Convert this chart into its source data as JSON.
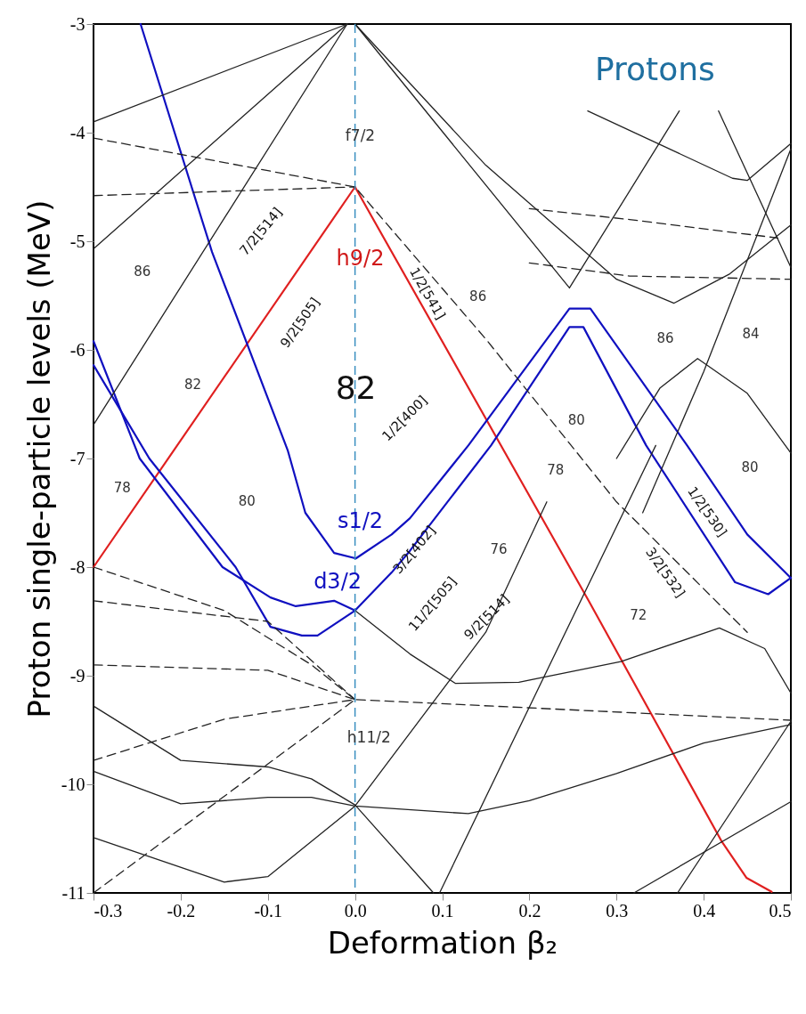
{
  "chart_data": {
    "type": "line",
    "xlabel": "Deformation β₂",
    "ylabel": "Proton single-particle levels (MeV)",
    "xlim": [
      -0.3,
      0.5
    ],
    "ylim": [
      -11,
      -3
    ],
    "xticks": [
      -0.3,
      -0.2,
      -0.1,
      {
        "value": 0,
        "label": "0.0"
      },
      0.1,
      0.2,
      0.3,
      0.4,
      0.5
    ],
    "yticks": [
      -11,
      -10,
      -9,
      -8,
      -7,
      -6,
      -5,
      -4,
      -3
    ],
    "grid": false,
    "marker": "none",
    "series": [
      {
        "color": "#e02020",
        "line_style": "solid",
        "x": [
          -0.3,
          0.0,
          0.268,
          0.421,
          0.449,
          0.478
        ],
        "values": [
          -8.0,
          -4.5,
          -8.31,
          -10.53,
          -10.86,
          -10.99
        ]
      },
      {
        "color": "#1010c0",
        "line_style": "solid",
        "x": [
          -0.246,
          -0.164,
          -0.077,
          -0.057,
          -0.024,
          0.001,
          0.042,
          0.063,
          0.13,
          0.246,
          0.27,
          0.381,
          0.45,
          0.5
        ],
        "values": [
          -3.0,
          -5.1,
          -6.93,
          -7.5,
          -7.87,
          -7.92,
          -7.7,
          -7.55,
          -6.88,
          -5.62,
          -5.62,
          -6.88,
          -7.7,
          -8.1
        ]
      },
      {
        "color": "#1010c0",
        "line_style": "solid",
        "x": [
          -0.3,
          -0.247,
          -0.152,
          -0.097,
          -0.068,
          -0.024,
          0.0,
          0.042,
          0.063,
          0.156,
          0.246,
          0.262,
          0.334,
          0.436,
          0.474,
          0.5
        ],
        "values": [
          -5.92,
          -7.0,
          -8.0,
          -8.28,
          -8.36,
          -8.31,
          -8.4,
          -8.05,
          -7.85,
          -6.88,
          -5.79,
          -5.79,
          -6.88,
          -8.14,
          -8.25,
          -8.1
        ]
      },
      {
        "color": "#1010c0",
        "line_style": "solid",
        "x": [
          -0.3,
          -0.236,
          -0.137,
          -0.097,
          -0.061,
          -0.043,
          0.0
        ],
        "values": [
          -6.14,
          -7.0,
          -8.0,
          -8.55,
          -8.63,
          -8.63,
          -8.4
        ]
      },
      {
        "color": "#222222",
        "line_style": "solid",
        "x": [
          -0.3,
          -0.009
        ],
        "values": [
          -3.9,
          -3.0
        ]
      },
      {
        "color": "#222222",
        "line_style": "solid",
        "x": [
          -0.3,
          -0.009
        ],
        "values": [
          -5.07,
          -3.0
        ]
      },
      {
        "color": "#222222",
        "line_style": "solid",
        "x": [
          -0.3,
          -0.009
        ],
        "values": [
          -6.69,
          -3.0
        ]
      },
      {
        "color": "#222222",
        "line_style": "solid",
        "x": [
          -0.3,
          -0.2,
          -0.1,
          -0.05,
          0.0,
          0.09
        ],
        "values": [
          -9.28,
          -9.78,
          -9.84,
          -9.95,
          -10.19,
          -11.0
        ]
      },
      {
        "color": "#222222",
        "line_style": "solid",
        "x": [
          -0.3,
          -0.2,
          -0.1,
          -0.05,
          0.0,
          0.13,
          0.2,
          0.3,
          0.4,
          0.5
        ],
        "values": [
          -9.88,
          -10.18,
          -10.12,
          -10.12,
          -10.2,
          -10.27,
          -10.15,
          -9.9,
          -9.62,
          -9.45
        ]
      },
      {
        "color": "#222222",
        "line_style": "solid",
        "x": [
          -0.3,
          -0.15,
          -0.1,
          0.0,
          0.15,
          0.22
        ],
        "values": [
          -10.49,
          -10.9,
          -10.85,
          -10.2,
          -8.6,
          -7.4
        ]
      },
      {
        "color": "#222222",
        "line_style": "solid",
        "x": [
          0.0,
          0.063,
          0.115,
          0.188,
          0.305,
          0.418,
          0.47,
          0.5
        ],
        "values": [
          -8.4,
          -8.8,
          -9.07,
          -9.06,
          -8.87,
          -8.56,
          -8.75,
          -9.16
        ]
      },
      {
        "color": "#222222",
        "line_style": "solid",
        "x": [
          0.097,
          0.345
        ],
        "values": [
          -11.0,
          -6.88
        ]
      },
      {
        "color": "#222222",
        "line_style": "solid",
        "x": [
          0.37,
          0.5
        ],
        "values": [
          -11.0,
          -9.42
        ]
      },
      {
        "color": "#222222",
        "line_style": "solid",
        "x": [
          0.32,
          0.5
        ],
        "values": [
          -11.0,
          -10.16
        ]
      },
      {
        "color": "#222222",
        "line_style": "solid",
        "x": [
          0.0,
          0.246,
          0.372
        ],
        "values": [
          -3.0,
          -5.43,
          -3.8
        ]
      },
      {
        "color": "#222222",
        "line_style": "solid",
        "x": [
          0.0,
          0.15,
          0.3,
          0.366,
          0.43,
          0.5
        ],
        "values": [
          -3.0,
          -4.3,
          -5.35,
          -5.57,
          -5.3,
          -4.85
        ]
      },
      {
        "color": "#222222",
        "line_style": "solid",
        "x": [
          0.267,
          0.433,
          0.45,
          0.5
        ],
        "values": [
          -3.8,
          -4.42,
          -4.44,
          -4.1
        ]
      },
      {
        "color": "#222222",
        "line_style": "solid",
        "x": [
          0.417,
          0.5
        ],
        "values": [
          -3.8,
          -5.24
        ]
      },
      {
        "color": "#222222",
        "line_style": "solid",
        "x": [
          0.3,
          0.35,
          0.393,
          0.45,
          0.5
        ],
        "values": [
          -7.0,
          -6.35,
          -6.08,
          -6.4,
          -6.95
        ]
      },
      {
        "color": "#222222",
        "line_style": "solid",
        "x": [
          0.33,
          0.4,
          0.5
        ],
        "values": [
          -7.5,
          -6.2,
          -4.15
        ]
      },
      {
        "color": "#222222",
        "line_style": "dashed",
        "x": [
          -0.3,
          -0.15,
          -0.05,
          0.0
        ],
        "values": [
          -8.0,
          -8.4,
          -8.9,
          -9.22
        ]
      },
      {
        "color": "#222222",
        "line_style": "dashed",
        "x": [
          -0.3,
          -0.1,
          0.0
        ],
        "values": [
          -8.31,
          -8.5,
          -9.22
        ]
      },
      {
        "color": "#222222",
        "line_style": "dashed",
        "x": [
          -0.3,
          -0.1,
          0.0
        ],
        "values": [
          -8.9,
          -8.95,
          -9.22
        ]
      },
      {
        "color": "#222222",
        "line_style": "dashed",
        "x": [
          -0.3,
          -0.15,
          0.0,
          0.5
        ],
        "values": [
          -9.78,
          -9.4,
          -9.22,
          -9.41
        ]
      },
      {
        "color": "#222222",
        "line_style": "dashed",
        "x": [
          -0.3,
          0.0
        ],
        "values": [
          -11.0,
          -9.22
        ]
      },
      {
        "color": "#222222",
        "line_style": "dashed",
        "x": [
          -0.3,
          0.0,
          0.15,
          0.3,
          0.45
        ],
        "values": [
          -4.05,
          -4.5,
          -5.9,
          -7.4,
          -8.6
        ]
      },
      {
        "color": "#222222",
        "line_style": "dashed",
        "x": [
          -0.3,
          0.0
        ],
        "values": [
          -4.58,
          -4.5
        ]
      },
      {
        "color": "#222222",
        "line_style": "dashed",
        "x": [
          0.2,
          0.315,
          0.485
        ],
        "values": [
          -4.7,
          -4.8,
          -4.97
        ]
      },
      {
        "color": "#222222",
        "line_style": "dashed",
        "x": [
          0.2,
          0.315,
          0.5
        ],
        "values": [
          -5.2,
          -5.32,
          -5.35
        ]
      }
    ],
    "ref_lines": [
      {
        "axis": "x",
        "value": 0,
        "color": "#3a8fc0",
        "line_style": "dashed"
      }
    ],
    "annotations": [
      "Protons",
      "f7/2",
      "h9/2",
      "82",
      "s1/2",
      "d3/2",
      "h11/2",
      "86",
      "82",
      "78",
      "80",
      "86",
      "86",
      "84",
      "80",
      "78",
      "80",
      "76",
      "72",
      "7/2[514]",
      "9/2[505]",
      "1/2[541]",
      "1/2[400]",
      "3/2[402]",
      "11/2[505]",
      "9/2[514]",
      "1/2[530]",
      "3/2[532]"
    ]
  }
}
